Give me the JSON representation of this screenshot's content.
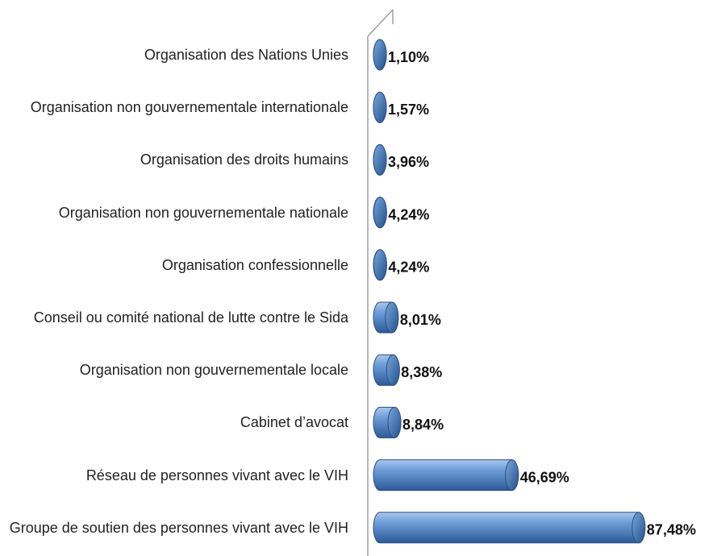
{
  "chart_data": {
    "type": "bar",
    "orientation": "horizontal",
    "categories": [
      "Organisation des Nations Unies",
      "Organisation non gouvernementale internationale",
      "Organisation des droits humains",
      "Organisation non gouvernementale nationale",
      "Organisation confessionnelle",
      "Conseil ou comité national de lutte contre le Sida",
      "Organisation non gouvernementale locale",
      "Cabinet d’avocat",
      "Réseau de personnes vivant avec le VIH",
      "Groupe de soutien des personnes vivant avec le VIH"
    ],
    "values": [
      1.1,
      1.57,
      3.96,
      4.24,
      4.24,
      8.01,
      8.38,
      8.84,
      46.69,
      87.48
    ],
    "value_labels": [
      "1,10%",
      "1,57%",
      "3,96%",
      "4,24%",
      "4,24%",
      "8,01%",
      "8,38%",
      "8,84%",
      "46,69%",
      "87,48%"
    ],
    "color": "#4f81bd",
    "xlim": [
      0,
      100
    ]
  }
}
